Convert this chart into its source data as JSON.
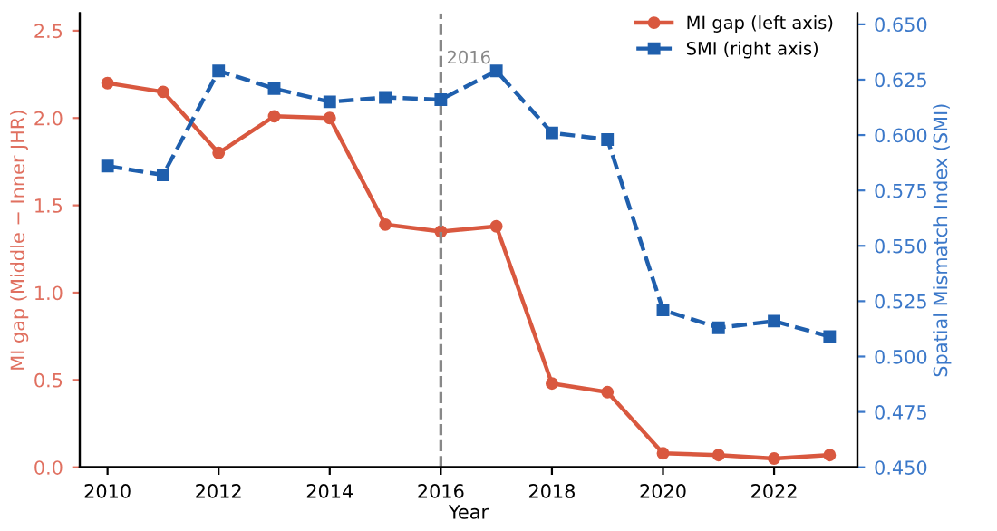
{
  "chart_data": {
    "type": "line",
    "xlabel": "Year",
    "ylabel": "MI gap (Middle − Inner JHR)",
    "y2label": "Spatial Mismatch Index (SMI)",
    "x": [
      2010,
      2011,
      2012,
      2013,
      2014,
      2015,
      2016,
      2017,
      2018,
      2019,
      2020,
      2021,
      2022,
      2023
    ],
    "series": [
      {
        "name": "MI gap (left axis)",
        "color": "#d9583f",
        "marker": "circle",
        "line_style": "solid",
        "values": [
          2.2,
          2.15,
          1.8,
          2.01,
          2.0,
          1.39,
          1.35,
          1.38,
          0.48,
          0.43,
          0.08,
          0.07,
          0.05,
          0.07
        ]
      },
      {
        "name": "SMI (right axis)",
        "color": "#1f5fad",
        "marker": "square",
        "line_style": "dashed",
        "axis": "y2",
        "values": [
          0.586,
          0.582,
          0.629,
          0.621,
          0.615,
          0.617,
          0.616,
          0.629,
          0.601,
          0.598,
          0.521,
          0.513,
          0.516,
          0.509
        ]
      }
    ],
    "xlim": [
      2009.5,
      2023.5
    ],
    "xticks": [
      2010,
      2012,
      2014,
      2016,
      2018,
      2020,
      2022
    ],
    "ylim": [
      0,
      2.6
    ],
    "yticks": [
      {
        "value": 0,
        "label": "0.0"
      },
      0.5,
      {
        "value": 1,
        "label": "1.0"
      },
      1.5,
      {
        "value": 2,
        "label": "2.0"
      },
      2.5
    ],
    "y2lim": [
      0.45,
      0.655
    ],
    "y2ticks": [
      {
        "value": 0.45,
        "label": "0.450"
      },
      0.475,
      {
        "value": 0.5,
        "label": "0.500"
      },
      0.525,
      {
        "value": 0.55,
        "label": "0.550"
      },
      0.575,
      {
        "value": 0.6,
        "label": "0.600"
      },
      0.625,
      {
        "value": 0.65,
        "label": "0.650"
      }
    ],
    "ref_lines": [
      {
        "axis": "x",
        "value": 2016,
        "label": "2016",
        "color": "#888888",
        "line_style": "dashed"
      }
    ],
    "legend": "top right",
    "grid": false
  }
}
